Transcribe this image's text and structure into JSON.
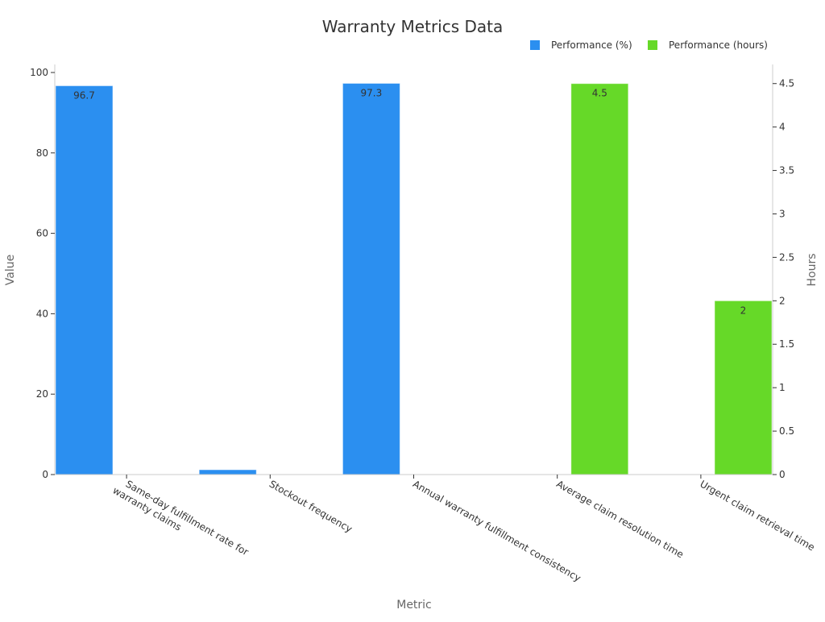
{
  "chart_data": {
    "type": "bar",
    "title": "Warranty Metrics Data",
    "xlabel": "Metric",
    "ylabel": "Value",
    "y2label": "Hours",
    "categories": [
      "Same-day fulfillment rate for warranty claims",
      "Stockout frequency",
      "Annual warranty fulfillment consistency",
      "Average claim resolution time",
      "Urgent claim retrieval time"
    ],
    "category_labels": [
      [
        "Same-day fulfillment rate for",
        "warranty claims"
      ],
      [
        "Stockout frequency"
      ],
      [
        "Annual warranty fulfillment consistency"
      ],
      [
        "Average claim resolution time"
      ],
      [
        "Urgent claim retrieval time"
      ]
    ],
    "series": [
      {
        "name": "Performance (%)",
        "axis": "left",
        "color": "#2b8ff0",
        "values": [
          96.7,
          1.2,
          97.3,
          null,
          null
        ],
        "labels": [
          "96.7",
          "",
          "97.3",
          "",
          ""
        ]
      },
      {
        "name": "Performance (hours)",
        "axis": "right",
        "color": "#66d928",
        "values": [
          null,
          null,
          null,
          4.5,
          2
        ],
        "labels": [
          "",
          "",
          "",
          "4.5",
          "2"
        ]
      }
    ],
    "ylim": [
      0,
      102
    ],
    "y2lim": [
      0,
      4.72
    ],
    "yticks": [
      "0",
      "20",
      "40",
      "60",
      "80",
      "100"
    ],
    "y2ticks": [
      "0",
      "0.5",
      "1",
      "1.5",
      "2",
      "2.5",
      "3",
      "3.5",
      "4",
      "4.5"
    ],
    "grid": false,
    "legend": "top-right"
  }
}
